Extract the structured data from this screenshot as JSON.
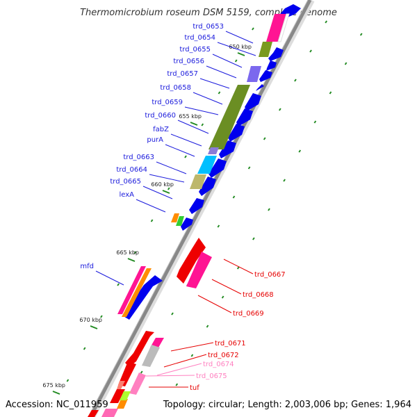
{
  "map": {
    "title": "Thermomicrobium roseum DSM 5159, complete genome",
    "accession": "Accession: NC_011959",
    "summary": "Topology: circular; Length: 2,003,006 bp; Genes: 1,964"
  },
  "colors": {
    "backbone": "#888888",
    "label_forward": "#1a1adc",
    "label_reverse": "#e60000",
    "label_reverse_light": "#ff80c0",
    "cds_blue": "#0000ee",
    "cds_red": "#ee0000",
    "cds_magenta": "#ff00aa",
    "cds_olive": "#6b8e23",
    "cds_cyan": "#00bfff",
    "cds_khaki": "#bdb76b",
    "cds_purple": "#6a5acd",
    "cds_orange": "#ff8c00",
    "cds_green": "#32cd32",
    "cds_gray": "#bbbbbb",
    "cds_salmon": "#fa8072",
    "tick_green": "#228b22"
  },
  "ticks": [
    {
      "label": "650 kbp"
    },
    {
      "label": "655 kbp"
    },
    {
      "label": "660 kbp"
    },
    {
      "label": "665 kbp"
    },
    {
      "label": "670 kbp"
    },
    {
      "label": "675 kbp"
    }
  ],
  "genes_forward": [
    {
      "label": "trd_0653"
    },
    {
      "label": "trd_0654"
    },
    {
      "label": "trd_0655"
    },
    {
      "label": "trd_0656"
    },
    {
      "label": "trd_0657"
    },
    {
      "label": "trd_0658"
    },
    {
      "label": "trd_0659"
    },
    {
      "label": "trd_0660"
    },
    {
      "label": "fabZ"
    },
    {
      "label": "purA"
    },
    {
      "label": "trd_0663"
    },
    {
      "label": "trd_0664"
    },
    {
      "label": "trd_0665"
    },
    {
      "label": "lexA"
    },
    {
      "label": "mfd"
    }
  ],
  "genes_reverse": [
    {
      "label": "trd_0667",
      "tone": "dark"
    },
    {
      "label": "trd_0668",
      "tone": "dark"
    },
    {
      "label": "trd_0669",
      "tone": "dark"
    },
    {
      "label": "trd_0671",
      "tone": "dark"
    },
    {
      "label": "trd_0672",
      "tone": "dark"
    },
    {
      "label": "trd_0674",
      "tone": "light"
    },
    {
      "label": "trd_0675",
      "tone": "light"
    },
    {
      "label": "tuf",
      "tone": "dark"
    }
  ]
}
